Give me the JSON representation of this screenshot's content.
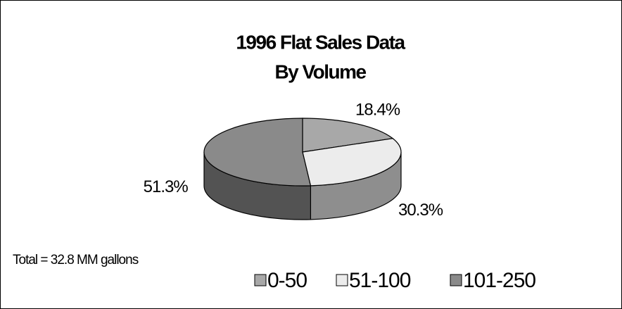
{
  "chart_data": {
    "type": "pie3d",
    "title": "1996 Flat Sales Data",
    "subtitle": "By Volume",
    "annotation": "Total = 32.8 MM gallons",
    "categories": [
      "0-50",
      "51-100",
      "101-250"
    ],
    "values": [
      18.4,
      30.3,
      51.3
    ],
    "value_labels": [
      "18.4%",
      "30.3%",
      "51.3%"
    ],
    "colors": [
      "#a8a8a8",
      "#ececec",
      "#8a8a8a"
    ],
    "legend": "bottom"
  }
}
